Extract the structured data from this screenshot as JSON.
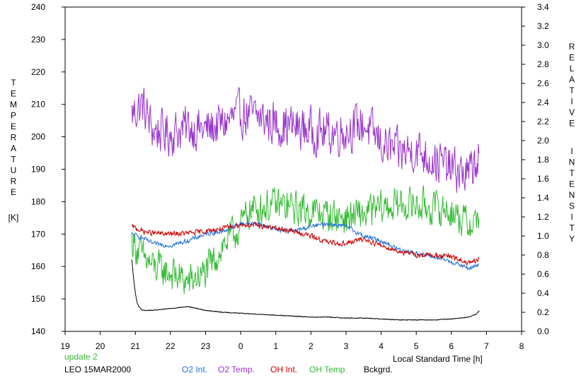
{
  "chart_data": {
    "type": "line",
    "left_axis": {
      "title_letters": [
        "T",
        "E",
        "M",
        "P",
        "E",
        "R",
        "A",
        "T",
        "U",
        "R",
        "E"
      ],
      "unit": "[K]",
      "ylim": [
        140,
        240
      ],
      "ticks": [
        "140",
        "150",
        "160",
        "170",
        "180",
        "190",
        "200",
        "210",
        "220",
        "230",
        "240"
      ]
    },
    "right_axis": {
      "title_word1": [
        "R",
        "E",
        "L",
        "A",
        "T",
        "I",
        "V",
        "E"
      ],
      "title_word2": [
        "I",
        "N",
        "T",
        "E",
        "N",
        "S",
        "I",
        "T",
        "Y"
      ],
      "ylim": [
        0.0,
        3.4
      ],
      "ticks": [
        "0.0",
        "0.2",
        "0.4",
        "0.6",
        "0.8",
        "1.0",
        "1.2",
        "1.4",
        "1.6",
        "1.8",
        "2.0",
        "2.2",
        "2.4",
        "2.6",
        "2.8",
        "3.0",
        "3.2",
        "3.4"
      ]
    },
    "x_axis": {
      "label": "Local Standard Time [h]",
      "range_hours": [
        19,
        32
      ],
      "ticks": [
        "19",
        "20",
        "21",
        "22",
        "23",
        "0",
        "1",
        "2",
        "3",
        "4",
        "5",
        "6",
        "7",
        "8"
      ]
    },
    "annotations": {
      "update": "update 2",
      "station_date": "LEO 15MAR2000"
    },
    "legend": {
      "o2_int": "O2 Int.",
      "o2_temp": "O2 Temp.",
      "oh_int": "OH Int.",
      "oh_temp": "OH Temp.",
      "bckgrd": "Bckgrd."
    },
    "colors": {
      "o2_int": "#1f6fdc",
      "o2_temp": "#9933cc",
      "oh_int": "#cc0000",
      "oh_temp": "#33bb33",
      "bckgrd": "#000000",
      "update": "#33bb33"
    },
    "series": [
      {
        "key": "o2_temp",
        "name": "O2 Temp.",
        "axis": "left",
        "x": [
          20.9,
          21.2,
          21.5,
          22,
          22.5,
          23,
          23.5,
          24,
          24.5,
          25,
          25.5,
          26,
          26.5,
          27,
          27.5,
          28,
          28.5,
          29,
          29.5,
          30,
          30.5,
          30.8
        ],
        "y": [
          207,
          210,
          202,
          201,
          203,
          202,
          204,
          207,
          206,
          204,
          203,
          202,
          201,
          202,
          204,
          198,
          195,
          196,
          193,
          190,
          188,
          195
        ]
      },
      {
        "key": "oh_temp",
        "name": "OH Temp.",
        "axis": "left",
        "x": [
          20.9,
          21.2,
          21.5,
          22,
          22.5,
          23,
          23.3,
          23.6,
          24,
          24.2,
          24.5,
          25,
          25.5,
          26,
          26.5,
          27,
          27.5,
          28,
          28.5,
          29,
          29.5,
          30,
          30.5,
          30.8
        ],
        "y": [
          168,
          163,
          160,
          158,
          155,
          158,
          163,
          168,
          172,
          177,
          178,
          179,
          178,
          177,
          176,
          175,
          176,
          178,
          179,
          179,
          178,
          177,
          173,
          175
        ]
      },
      {
        "key": "o2_int",
        "name": "O2 Int.",
        "axis": "right",
        "x": [
          20.9,
          21.2,
          21.5,
          22,
          22.5,
          23,
          23.5,
          24,
          24.5,
          25,
          25.5,
          26,
          26.5,
          27,
          27.5,
          28,
          28.5,
          29,
          29.5,
          30,
          30.5,
          30.8
        ],
        "y": [
          1.02,
          0.98,
          0.92,
          0.9,
          0.95,
          1.02,
          1.05,
          1.13,
          1.13,
          1.07,
          1.05,
          1.1,
          1.13,
          1.1,
          1.0,
          0.95,
          0.86,
          0.82,
          0.78,
          0.73,
          0.66,
          0.7
        ]
      },
      {
        "key": "oh_int",
        "name": "OH Int.",
        "axis": "right",
        "x": [
          20.9,
          21.2,
          21.5,
          22,
          22.5,
          23,
          23.5,
          24,
          24.5,
          25,
          25.5,
          26,
          26.5,
          27,
          27.5,
          28,
          28.5,
          29,
          29.5,
          30,
          30.5,
          30.8
        ],
        "y": [
          1.1,
          1.05,
          1.03,
          1.02,
          1.03,
          1.05,
          1.08,
          1.12,
          1.11,
          1.08,
          1.05,
          1.0,
          0.93,
          0.92,
          0.97,
          0.9,
          0.84,
          0.8,
          0.8,
          0.78,
          0.71,
          0.75
        ]
      },
      {
        "key": "bckgrd",
        "name": "Bckgrd.",
        "axis": "right",
        "x": [
          20.9,
          20.95,
          21.0,
          21.05,
          21.1,
          21.2,
          21.5,
          22,
          22.5,
          23,
          23.5,
          24,
          24.5,
          25,
          25.5,
          26,
          26.5,
          27,
          27.5,
          28,
          28.5,
          29,
          29.5,
          30,
          30.5,
          30.7,
          30.8
        ],
        "y": [
          0.75,
          0.55,
          0.4,
          0.3,
          0.26,
          0.22,
          0.22,
          0.24,
          0.26,
          0.22,
          0.2,
          0.19,
          0.18,
          0.17,
          0.16,
          0.15,
          0.15,
          0.14,
          0.14,
          0.13,
          0.12,
          0.12,
          0.12,
          0.13,
          0.15,
          0.18,
          0.22
        ]
      }
    ]
  }
}
